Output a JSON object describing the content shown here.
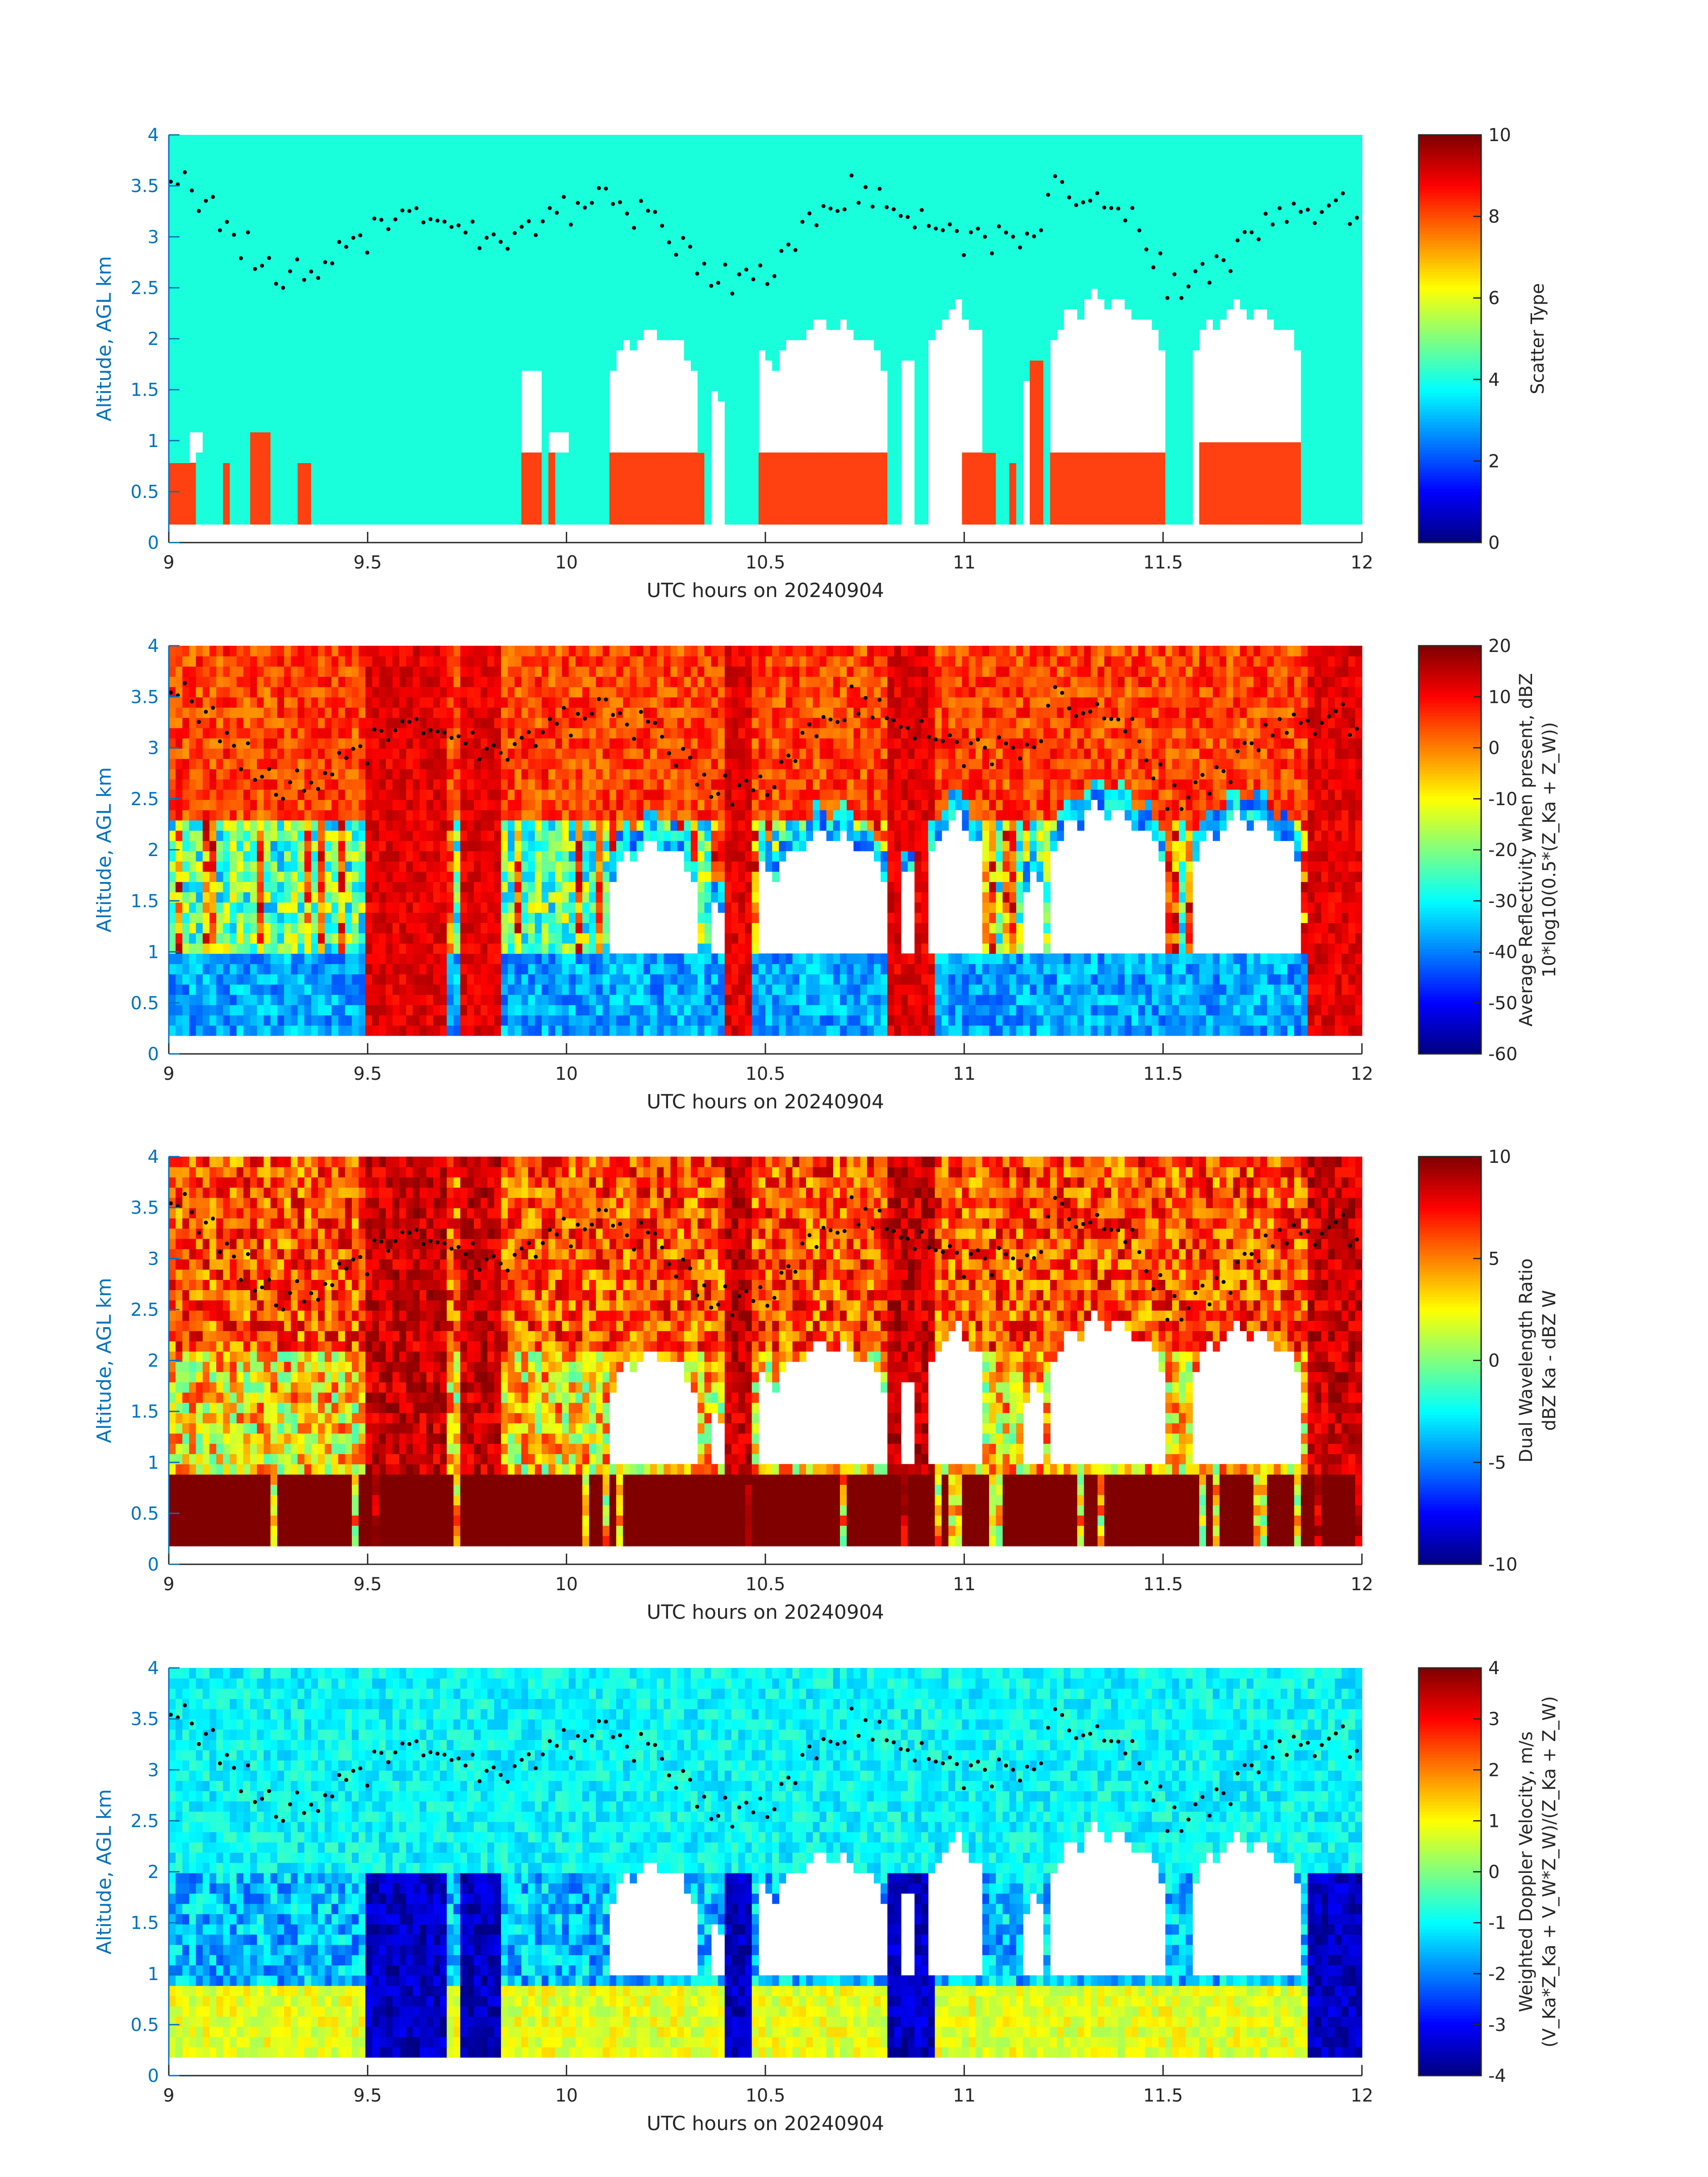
{
  "chart_data": [
    {
      "type": "heatmap",
      "xlabel": "UTC hours on 20240904",
      "ylabel": "Altitude, AGL km",
      "xlim": [
        9,
        12
      ],
      "ylim": [
        0,
        4
      ],
      "xticks": [
        "9",
        "9.5",
        "10",
        "10.5",
        "11",
        "11.5",
        "12"
      ],
      "yticks": [
        "0",
        "0.5",
        "1",
        "1.5",
        "2",
        "2.5",
        "3",
        "3.5",
        "4"
      ],
      "colorbar": {
        "label_lines": [
          "Scatter Type"
        ],
        "clim": [
          0,
          10
        ],
        "ticks": [
          "0",
          "2",
          "4",
          "6",
          "8",
          "10"
        ]
      },
      "field": "scatter",
      "overlay": "flight-altitude-dots"
    },
    {
      "type": "heatmap",
      "xlabel": "UTC hours on 20240904",
      "ylabel": "Altitude, AGL km",
      "xlim": [
        9,
        12
      ],
      "ylim": [
        0,
        4
      ],
      "xticks": [
        "9",
        "9.5",
        "10",
        "10.5",
        "11",
        "11.5",
        "12"
      ],
      "yticks": [
        "0",
        "0.5",
        "1",
        "1.5",
        "2",
        "2.5",
        "3",
        "3.5",
        "4"
      ],
      "colorbar": {
        "label_lines": [
          "Average Reflectivity when present, dBZ",
          "10*log10(0.5*(Z_Ka + Z_W))"
        ],
        "clim": [
          -60,
          20
        ],
        "ticks": [
          "-60",
          "-50",
          "-40",
          "-30",
          "-20",
          "-10",
          "0",
          "10",
          "20"
        ]
      },
      "field": "refl",
      "overlay": "flight-altitude-dots"
    },
    {
      "type": "heatmap",
      "xlabel": "UTC hours on 20240904",
      "ylabel": "Altitude, AGL km",
      "xlim": [
        9,
        12
      ],
      "ylim": [
        0,
        4
      ],
      "xticks": [
        "9",
        "9.5",
        "10",
        "10.5",
        "11",
        "11.5",
        "12"
      ],
      "yticks": [
        "0",
        "0.5",
        "1",
        "1.5",
        "2",
        "2.5",
        "3",
        "3.5",
        "4"
      ],
      "colorbar": {
        "label_lines": [
          "Dual Wavelength Ratio",
          "dBZ Ka - dBZ W"
        ],
        "clim": [
          -10,
          10
        ],
        "ticks": [
          "-10",
          "-5",
          "0",
          "5",
          "10"
        ]
      },
      "field": "dwr",
      "overlay": "flight-altitude-dots"
    },
    {
      "type": "heatmap",
      "xlabel": "UTC hours on 20240904",
      "ylabel": "Altitude, AGL km",
      "xlim": [
        9,
        12
      ],
      "ylim": [
        0,
        4
      ],
      "xticks": [
        "9",
        "9.5",
        "10",
        "10.5",
        "11",
        "11.5",
        "12"
      ],
      "yticks": [
        "0",
        "0.5",
        "1",
        "1.5",
        "2",
        "2.5",
        "3",
        "3.5",
        "4"
      ],
      "colorbar": {
        "label_lines": [
          "Weighted Doppler Velocity, m/s",
          "(V_Ka*Z_Ka + V_W*Z_W)/(Z_Ka + Z_W)"
        ],
        "clim": [
          -4,
          4
        ],
        "ticks": [
          "-4",
          "-3",
          "-2",
          "-1",
          "0",
          "1",
          "2",
          "3",
          "4"
        ]
      },
      "field": "vel",
      "overlay": "flight-altitude-dots"
    }
  ],
  "colormap": "jet",
  "scatter_colors": {
    "background_type_4": "#19ffdc",
    "precip_type_8": "#ff4010",
    "empty": "#ffffff"
  }
}
